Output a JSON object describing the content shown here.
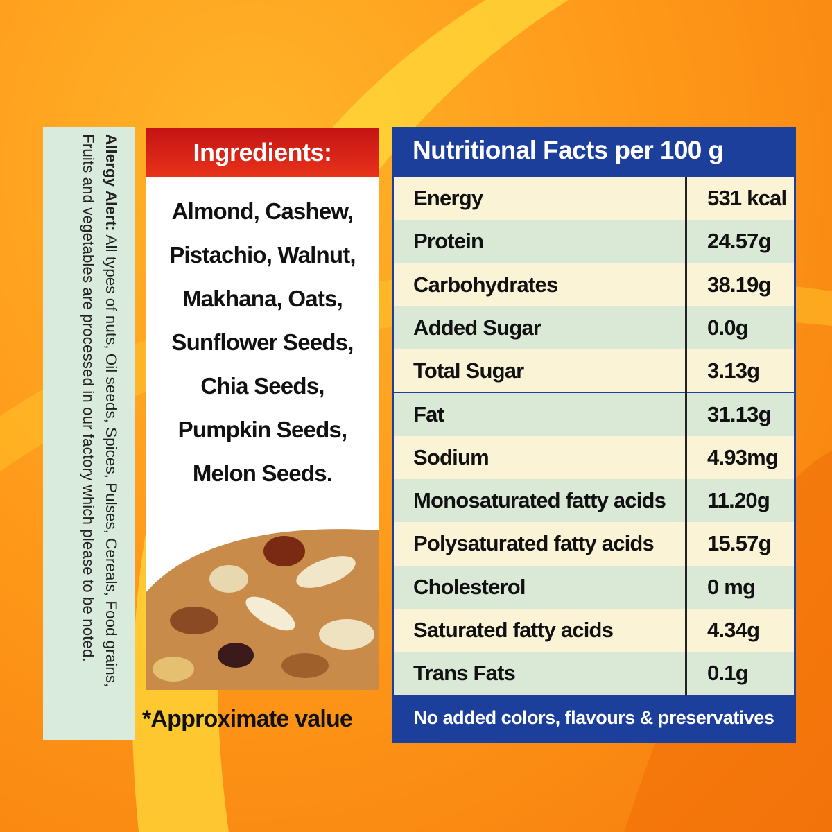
{
  "allergy": {
    "label": "Allergy Alert:",
    "text": "All types of nuts, Oil seeds, Spices, Pulses, Cereals, Food grains, Fruits and vegetables are processed in our factory which please to be noted."
  },
  "ingredients": {
    "title": "Ingredients:",
    "lines": [
      "Almond, Cashew,",
      "Pistachio, Walnut,",
      "Makhana, Oats,",
      "Sunflower Seeds,",
      "Chia Seeds,",
      "Pumpkin Seeds,",
      "Melon Seeds."
    ],
    "note": "*Approximate value"
  },
  "nutrition": {
    "title": "Nutritional Facts per 100 g",
    "rows": [
      [
        "Energy",
        "531 kcal"
      ],
      [
        "Protein",
        "24.57g"
      ],
      [
        "Carbohydrates",
        "38.19g"
      ],
      [
        "Added Sugar",
        "0.0g"
      ],
      [
        "Total Sugar",
        "3.13g"
      ],
      [
        "Fat",
        "31.13g"
      ],
      [
        "Sodium",
        "4.93mg"
      ],
      [
        "Monosaturated fatty acids",
        "11.20g"
      ],
      [
        "Polysaturated fatty acids",
        "15.57g"
      ],
      [
        "Cholesterol",
        "0 mg"
      ],
      [
        "Saturated fatty acids",
        "4.34g"
      ],
      [
        "Trans Fats",
        "0.1g"
      ]
    ],
    "footer": "No added colors, flavours & preservatives"
  }
}
